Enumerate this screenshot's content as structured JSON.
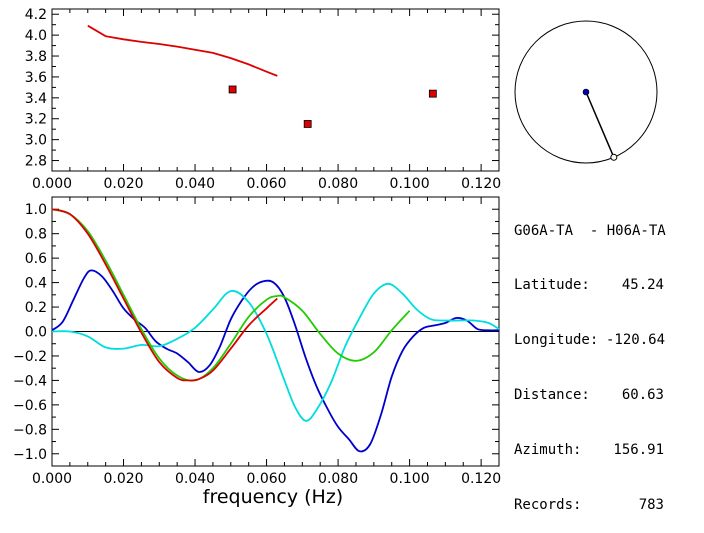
{
  "chart_data": [
    {
      "type": "scatter",
      "xlim": [
        0.0,
        0.125
      ],
      "ylim": [
        2.7,
        4.25
      ],
      "xticks": [
        "0.000",
        "0.020",
        "0.040",
        "0.060",
        "0.080",
        "0.100",
        "0.120"
      ],
      "yticks": [
        "2.8",
        "3.0",
        "3.2",
        "3.4",
        "3.6",
        "3.8",
        "4.0",
        "4.2"
      ],
      "grid": false,
      "series": [
        {
          "kind": "line",
          "color": "#dd0000",
          "x": [
            0.01,
            0.015,
            0.02,
            0.025,
            0.03,
            0.035,
            0.04,
            0.045,
            0.05,
            0.055,
            0.06,
            0.063
          ],
          "y": [
            4.09,
            3.99,
            3.96,
            3.935,
            3.915,
            3.89,
            3.86,
            3.83,
            3.78,
            3.72,
            3.65,
            3.61
          ]
        },
        {
          "kind": "points",
          "color": "#dd0000",
          "x": [
            0.0505,
            0.0715,
            0.1065
          ],
          "y": [
            3.48,
            3.15,
            3.44
          ]
        }
      ]
    },
    {
      "type": "line",
      "xlim": [
        0.0,
        0.125
      ],
      "ylim": [
        -1.1,
        1.1
      ],
      "xticks": [
        "0.000",
        "0.020",
        "0.040",
        "0.060",
        "0.080",
        "0.100",
        "0.120"
      ],
      "yticks": [
        "1.0",
        "0.8",
        "0.6",
        "0.4",
        "0.2",
        "0.0",
        "−0.2",
        "−0.4",
        "−0.6",
        "−0.8",
        "−1.0"
      ],
      "xlabel": "frequency (Hz)",
      "grid": false,
      "zero_line": true,
      "series": [
        {
          "color": "#0000cc",
          "x": [
            0,
            0.003,
            0.006,
            0.009,
            0.011,
            0.014,
            0.017,
            0.02,
            0.023,
            0.026,
            0.029,
            0.032,
            0.035,
            0.038,
            0.041,
            0.044,
            0.047,
            0.05,
            0.053,
            0.056,
            0.059,
            0.062,
            0.065,
            0.068,
            0.071,
            0.074,
            0.077,
            0.08,
            0.083,
            0.086,
            0.089,
            0.092,
            0.095,
            0.098,
            0.101,
            0.104,
            0.107,
            0.11,
            0.113,
            0.116,
            0.119,
            0.122,
            0.125
          ],
          "y": [
            0.01,
            0.08,
            0.26,
            0.44,
            0.5,
            0.45,
            0.33,
            0.19,
            0.1,
            0.03,
            -0.08,
            -0.14,
            -0.18,
            -0.25,
            -0.33,
            -0.28,
            -0.12,
            0.1,
            0.25,
            0.36,
            0.41,
            0.4,
            0.28,
            0.05,
            -0.22,
            -0.45,
            -0.63,
            -0.78,
            -0.88,
            -0.98,
            -0.92,
            -0.68,
            -0.37,
            -0.16,
            -0.04,
            0.03,
            0.05,
            0.07,
            0.11,
            0.09,
            0.02,
            0.01,
            0.01
          ]
        },
        {
          "color": "#00dddd",
          "x": [
            0,
            0.005,
            0.01,
            0.015,
            0.02,
            0.025,
            0.03,
            0.035,
            0.04,
            0.045,
            0.05,
            0.055,
            0.06,
            0.065,
            0.068,
            0.071,
            0.074,
            0.078,
            0.082,
            0.086,
            0.09,
            0.094,
            0.098,
            0.102,
            0.106,
            0.11,
            0.114,
            0.118,
            0.122,
            0.125
          ],
          "y": [
            0.0,
            0.0,
            -0.04,
            -0.13,
            -0.14,
            -0.11,
            -0.12,
            -0.06,
            0.03,
            0.18,
            0.33,
            0.24,
            -0.02,
            -0.4,
            -0.62,
            -0.73,
            -0.64,
            -0.42,
            -0.12,
            0.11,
            0.31,
            0.39,
            0.31,
            0.18,
            0.1,
            0.09,
            0.09,
            0.09,
            0.07,
            0.02
          ]
        },
        {
          "color": "#22cc00",
          "x": [
            0,
            0.005,
            0.01,
            0.015,
            0.02,
            0.025,
            0.03,
            0.035,
            0.04,
            0.045,
            0.05,
            0.055,
            0.06,
            0.063,
            0.065,
            0.07,
            0.075,
            0.08,
            0.085,
            0.09,
            0.095,
            0.1
          ],
          "y": [
            1.0,
            0.96,
            0.82,
            0.58,
            0.3,
            0.02,
            -0.22,
            -0.36,
            -0.4,
            -0.3,
            -0.1,
            0.12,
            0.26,
            0.29,
            0.28,
            0.17,
            -0.02,
            -0.18,
            -0.24,
            -0.17,
            0.01,
            0.17
          ]
        },
        {
          "color": "#dd0000",
          "x": [
            0,
            0.005,
            0.01,
            0.015,
            0.02,
            0.025,
            0.03,
            0.035,
            0.038,
            0.041,
            0.045,
            0.05,
            0.055,
            0.06,
            0.063
          ],
          "y": [
            1.0,
            0.96,
            0.8,
            0.55,
            0.27,
            -0.01,
            -0.25,
            -0.38,
            -0.4,
            -0.39,
            -0.32,
            -0.14,
            0.05,
            0.19,
            0.27
          ]
        }
      ]
    }
  ],
  "map": {
    "circle_color": "#000000",
    "station_a_color": "#0000aa",
    "azimuth_deg": 156.91
  },
  "info": {
    "title": "G06A-TA  - H06A-TA",
    "rows": [
      {
        "label": "Latitude:",
        "value": "45.24"
      },
      {
        "label": "Longitude:",
        "value": "-120.64"
      },
      {
        "label": "Distance:",
        "value": "60.63"
      },
      {
        "label": "Azimuth:",
        "value": "156.91"
      },
      {
        "label": "Records:",
        "value": "783"
      }
    ]
  }
}
